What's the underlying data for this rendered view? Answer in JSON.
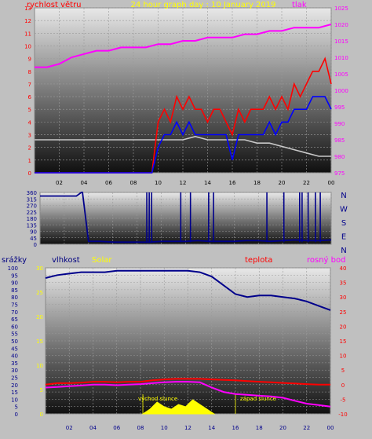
{
  "chart_data": [
    {
      "type": "line",
      "title": "24 hour graph day : 10 January 2019",
      "ylabel_left": "rychlost větru",
      "ylabel_right": "tlak",
      "x_ticks": [
        "02",
        "04",
        "06",
        "08",
        "10",
        "12",
        "14",
        "16",
        "18",
        "20",
        "22",
        "00"
      ],
      "left_ticks": [
        "0",
        "1",
        "2",
        "3",
        "4",
        "5",
        "6",
        "7",
        "8",
        "9",
        "10",
        "11",
        "12",
        "13"
      ],
      "right_ticks": [
        "975",
        "980",
        "985",
        "990",
        "995",
        "1000",
        "1005",
        "1010",
        "1015",
        "1020",
        "1025"
      ],
      "ylim_left": [
        0,
        13
      ],
      "ylim_right": [
        975,
        1025
      ],
      "grid": true,
      "series": [
        {
          "name": "tlak",
          "axis": "right",
          "color": "#ff00ff",
          "x": [
            0,
            1,
            2,
            3,
            4,
            5,
            6,
            7,
            8,
            9,
            10,
            11,
            12,
            13,
            14,
            15,
            16,
            17,
            18,
            19,
            20,
            21,
            22,
            23,
            24
          ],
          "values": [
            1007,
            1007,
            1008,
            1010,
            1011,
            1012,
            1012,
            1013,
            1013,
            1013,
            1014,
            1014,
            1015,
            1015,
            1016,
            1016,
            1016,
            1017,
            1017,
            1018,
            1018,
            1019,
            1019,
            1019,
            1020
          ]
        },
        {
          "name": "",
          "axis": "right",
          "color": "#c8c8c8",
          "x": [
            0,
            1,
            2,
            3,
            4,
            5,
            6,
            7,
            8,
            9,
            10,
            11,
            12,
            13,
            14,
            15,
            16,
            17,
            18,
            19,
            20,
            21,
            22,
            23,
            24
          ],
          "values": [
            985,
            985,
            985,
            985,
            985,
            985,
            985,
            985,
            985,
            985,
            985,
            985,
            985,
            986,
            985,
            985,
            985,
            985,
            984,
            984,
            983,
            982,
            981,
            980,
            980
          ]
        },
        {
          "name": "",
          "axis": "left",
          "color": "#ff0000",
          "x": [
            0,
            8,
            9.5,
            10,
            10.5,
            11,
            11.5,
            12,
            12.5,
            13,
            13.5,
            14,
            14.5,
            15,
            15.5,
            16,
            16.5,
            17,
            17.5,
            18,
            18.5,
            19,
            19.5,
            20,
            20.5,
            21,
            21.5,
            22,
            22.5,
            23,
            23.5,
            24
          ],
          "values": [
            0,
            0,
            0,
            4,
            5,
            4,
            6,
            5,
            6,
            5,
            5,
            4,
            5,
            5,
            4,
            3,
            5,
            4,
            5,
            5,
            5,
            6,
            5,
            6,
            5,
            7,
            6,
            7,
            8,
            8,
            9,
            7
          ]
        },
        {
          "name": "",
          "axis": "left",
          "color": "#0000ff",
          "x": [
            0,
            8,
            9.5,
            10,
            10.5,
            11,
            11.5,
            12,
            12.5,
            13,
            13.5,
            14,
            14.5,
            15,
            15.5,
            16,
            16.5,
            17,
            17.5,
            18,
            18.5,
            19,
            19.5,
            20,
            20.5,
            21,
            21.5,
            22,
            22.5,
            23,
            23.5,
            24
          ],
          "values": [
            0,
            0,
            0,
            2,
            3,
            3,
            4,
            3,
            4,
            3,
            3,
            3,
            3,
            3,
            3,
            1,
            3,
            3,
            3,
            3,
            3,
            4,
            3,
            4,
            4,
            5,
            5,
            5,
            6,
            6,
            6,
            5
          ]
        }
      ]
    },
    {
      "type": "line",
      "x_ticks": [],
      "left_ticks": [
        "0",
        "45",
        "90",
        "135",
        "180",
        "225",
        "270",
        "315",
        "360"
      ],
      "right_labels": [
        "N",
        "W",
        "S",
        "E",
        "N"
      ],
      "ylim": [
        0,
        360
      ],
      "series": [
        {
          "name": "",
          "color": "#00008b",
          "x": [
            0,
            1,
            2,
            3,
            3.4,
            3.5,
            4,
            5,
            6,
            7,
            8,
            9,
            10,
            11,
            12,
            13,
            14,
            15,
            16,
            17,
            18,
            19,
            20,
            21,
            22,
            23,
            24
          ],
          "values": [
            335,
            335,
            335,
            335,
            360,
            360,
            20,
            20,
            15,
            15,
            15,
            15,
            20,
            20,
            20,
            25,
            20,
            20,
            20,
            25,
            25,
            20,
            25,
            30,
            25,
            25,
            30
          ]
        }
      ],
      "spikes_x": [
        8.8,
        9.0,
        9.2,
        11.6,
        12.4,
        13.9,
        14.3,
        18.7,
        20.1,
        21.4,
        21.6,
        22.1,
        22.7,
        23.1
      ],
      "spike_value": 360
    },
    {
      "type": "line",
      "ylabel_left_outer": "srážky",
      "ylabel_left_inner": "vlhkost",
      "ylabel_solar": "Solar",
      "ylabel_temp": "teplota",
      "ylabel_right": "rosný bod",
      "x_ticks": [
        "02",
        "04",
        "06",
        "08",
        "10",
        "12",
        "14",
        "16",
        "18",
        "20",
        "22",
        "00"
      ],
      "ticks_outer": [
        "0",
        "5",
        "10",
        "15",
        "20",
        "25",
        "30",
        "35",
        "40",
        "45",
        "50",
        "55",
        "60",
        "65",
        "70",
        "75",
        "80",
        "85",
        "90",
        "95",
        "100"
      ],
      "ticks_inner": [
        "0",
        "5",
        "10",
        "15",
        "20",
        "25",
        "30"
      ],
      "ticks_right": [
        "-10",
        "-5",
        "0",
        "5",
        "10",
        "15",
        "20",
        "25",
        "30",
        "35",
        "40"
      ],
      "ylim_humidity": [
        0,
        100
      ],
      "ylim_temp": [
        -10,
        40
      ],
      "annotations": [
        {
          "text": "východ slunce",
          "x": 8.2
        },
        {
          "text": "západ slunce",
          "x": 16.0
        }
      ],
      "series": [
        {
          "name": "vlhkost",
          "axis": "humidity",
          "color": "#00008b",
          "x": [
            0,
            1,
            2,
            3,
            4,
            5,
            6,
            7,
            8,
            9,
            10,
            11,
            12,
            13,
            14,
            15,
            16,
            17,
            18,
            19,
            20,
            21,
            22,
            23,
            24
          ],
          "values": [
            93,
            95,
            96,
            97,
            97,
            97,
            98,
            98,
            98,
            98,
            98,
            98,
            98,
            97,
            94,
            88,
            82,
            80,
            81,
            81,
            80,
            79,
            77,
            74,
            71
          ]
        },
        {
          "name": "teplota",
          "axis": "temp",
          "color": "#ff0000",
          "x": [
            0,
            1,
            2,
            3,
            4,
            5,
            6,
            7,
            8,
            9,
            10,
            11,
            12,
            13,
            14,
            15,
            16,
            17,
            18,
            19,
            20,
            21,
            22,
            23,
            24
          ],
          "values": [
            0,
            0.5,
            0.5,
            0.7,
            1,
            1,
            0.8,
            1,
            1,
            1.5,
            1.8,
            2,
            2,
            2,
            1.8,
            1.6,
            1.5,
            1.2,
            1,
            0.8,
            0.6,
            0.4,
            0.2,
            0,
            0
          ]
        },
        {
          "name": "rosný bod",
          "axis": "temp",
          "color": "#ff00ff",
          "x": [
            0,
            1,
            2,
            3,
            4,
            5,
            6,
            7,
            8,
            9,
            10,
            11,
            12,
            13,
            14,
            15,
            16,
            17,
            18,
            19,
            20,
            21,
            22,
            23,
            24
          ],
          "values": [
            -1,
            -0.8,
            -0.5,
            -0.3,
            0,
            0,
            -0.2,
            0,
            0.2,
            0.5,
            0.8,
            1,
            1,
            0.8,
            -1,
            -2.5,
            -3.2,
            -3.5,
            -3.8,
            -4,
            -4.5,
            -5.5,
            -6.5,
            -7,
            -7.5
          ]
        },
        {
          "name": "Solar",
          "axis": "solar",
          "color": "#ffff00",
          "x": [
            8.2,
            8.8,
            9.4,
            10,
            10.6,
            11.2,
            11.8,
            12.4,
            13,
            13.6,
            14.2
          ],
          "values": [
            0,
            2,
            5,
            3,
            2,
            4,
            3,
            6,
            4,
            2,
            0
          ]
        }
      ]
    }
  ]
}
